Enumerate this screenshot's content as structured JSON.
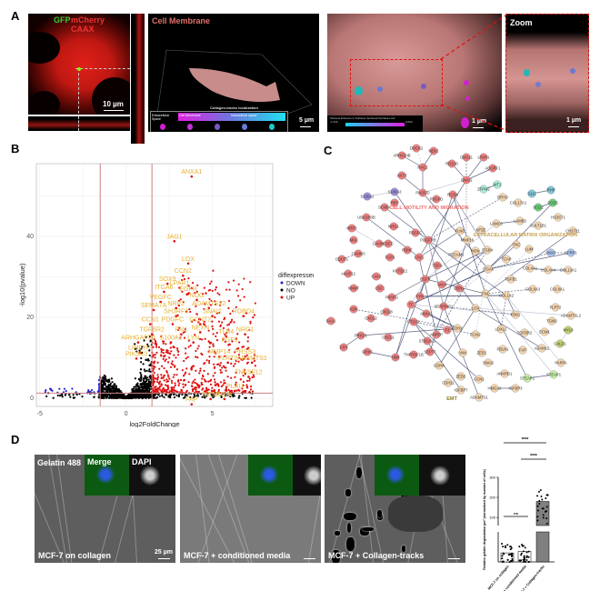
{
  "panels": {
    "a": "A",
    "b": "B",
    "c": "C",
    "d": "D"
  },
  "panel_a": {
    "img1": {
      "label_gfp": "GFP",
      "label_mcherry": "mCherry CAAX",
      "scale": "10 µm"
    },
    "img2": {
      "title": "Cell Membrane",
      "legend_title": "Collagen-tracks localization",
      "legend_extracellular": "Extracellular Space",
      "legend_membrane": "Cell Membrane",
      "legend_intracellular": "Intracellular space",
      "scale": "5 µm"
    },
    "img3": {
      "colorbar_title": "Shortest Distance to Surfaces Surfaces=Surfaces cell",
      "colorbar_min": "-1.316",
      "colorbar_max": "0.000",
      "scale": "1 µm"
    },
    "zoom": {
      "title": "Zoom",
      "scale": "1 µm"
    },
    "colors": {
      "extracellular": "#d020d0",
      "membrane": "#c030d8",
      "intra1": "#7a5ac0",
      "intra2": "#6a7ad8",
      "intra3": "#20c8c8"
    }
  },
  "chart_data": [
    {
      "type": "scatter",
      "title": "",
      "xlabel": "log2FoldChange",
      "ylabel": "-log10(pvalue)",
      "xlim": [
        -5.2,
        8.5
      ],
      "ylim": [
        -2,
        58
      ],
      "xticks": [
        "-5",
        "0",
        "5"
      ],
      "xtick_values": [
        -5,
        0,
        5
      ],
      "yticks": [
        "0",
        "20",
        "40"
      ],
      "ytick_values": [
        0,
        20,
        40
      ],
      "thresholds": {
        "log2fc": [
          -1.5,
          1.5
        ],
        "neg_log10_p": 1.3
      },
      "legend": {
        "title": "diffexpressed",
        "placement": "right",
        "entries": [
          {
            "name": "DOWN",
            "color": "#2020d0"
          },
          {
            "name": "NO",
            "color": "#000000"
          },
          {
            "name": "UP",
            "color": "#e01010"
          }
        ]
      },
      "labeled_genes": [
        {
          "gene": "ANXA1",
          "x": 3.8,
          "y": 55.5
        },
        {
          "gene": "JAG1",
          "x": 2.8,
          "y": 39.5
        },
        {
          "gene": "LOX",
          "x": 3.6,
          "y": 34
        },
        {
          "gene": "CCN2",
          "x": 3.3,
          "y": 31
        },
        {
          "gene": "SOX9",
          "x": 2.4,
          "y": 29
        },
        {
          "gene": "LPAR1",
          "x": 3.1,
          "y": 28
        },
        {
          "gene": "ITGA6",
          "x": 2.2,
          "y": 27
        },
        {
          "gene": "EGFR",
          "x": 3.6,
          "y": 26.5
        },
        {
          "gene": "NOG",
          "x": 4.1,
          "y": 25
        },
        {
          "gene": "VEGFC",
          "x": 2.0,
          "y": 24.5
        },
        {
          "gene": "NRP2",
          "x": 2.9,
          "y": 23
        },
        {
          "gene": "ADAMTS12",
          "x": 4.8,
          "y": 23
        },
        {
          "gene": "SEMA7A",
          "x": 1.6,
          "y": 22.5
        },
        {
          "gene": "SH3RF3",
          "x": 2.9,
          "y": 21
        },
        {
          "gene": "SNAI2",
          "x": 5.0,
          "y": 21
        },
        {
          "gene": "ROBO4",
          "x": 6.8,
          "y": 21
        },
        {
          "gene": "CCN1",
          "x": 1.4,
          "y": 19
        },
        {
          "gene": "PDGFC",
          "x": 2.7,
          "y": 19
        },
        {
          "gene": "GCNT2",
          "x": 4.3,
          "y": 19
        },
        {
          "gene": "NEXN",
          "x": 4.3,
          "y": 17
        },
        {
          "gene": "TGFBR2",
          "x": 1.5,
          "y": 16.5
        },
        {
          "gene": "FN1",
          "x": 3.2,
          "y": 16.5
        },
        {
          "gene": "TLR4",
          "x": 5.8,
          "y": 16
        },
        {
          "gene": "NRG1",
          "x": 6.9,
          "y": 16.5
        },
        {
          "gene": "ARHGAP29",
          "x": 0.7,
          "y": 14.5
        },
        {
          "gene": "S100A2",
          "x": 2.6,
          "y": 14.5
        },
        {
          "gene": "LYN",
          "x": 3.9,
          "y": 14.5
        },
        {
          "gene": "FGF5",
          "x": 6.0,
          "y": 14
        },
        {
          "gene": "LIMCH1",
          "x": 0.8,
          "y": 12
        },
        {
          "gene": "MMP14",
          "x": 5.4,
          "y": 11
        },
        {
          "gene": "PRSS3",
          "x": 6.9,
          "y": 11
        },
        {
          "gene": "PIK3R3",
          "x": 0.6,
          "y": 10.5
        },
        {
          "gene": "FLRT2",
          "x": 5.9,
          "y": 9.5
        },
        {
          "gene": "ADAMTS1",
          "x": 7.3,
          "y": 9.5
        },
        {
          "gene": "TNFSF12",
          "x": 7.1,
          "y": 6
        },
        {
          "gene": "PLAU",
          "x": 6.3,
          "y": 2.5
        },
        {
          "gene": "ETS1",
          "x": 4.9,
          "y": 0.5
        },
        {
          "gene": "MSN",
          "x": 5.7,
          "y": 0.5
        },
        {
          "gene": "FAP",
          "x": 3.8,
          "y": -0.8
        }
      ]
    },
    {
      "type": "bar",
      "title": "",
      "ylabel": "Relative gelatin degradation µm² (normalized by number of cells)",
      "categories": [
        "MCF-7 on collagen",
        "MCF-7 + conditioned media",
        "MCF-7 + Collagen-tracks"
      ],
      "values": [
        12,
        14,
        150
      ],
      "yticks_upper": [
        "100",
        "200",
        "300"
      ],
      "ytick_values_upper": [
        100,
        200,
        300
      ],
      "axis_break": true,
      "significance": [
        {
          "pair": [
            1,
            2
          ],
          "label": "****"
        },
        {
          "pair": [
            2,
            3
          ],
          "label": "****"
        },
        {
          "pair": [
            1,
            2
          ],
          "label": "ns",
          "level": "low"
        }
      ],
      "bar_color": "#808080"
    }
  ],
  "network": {
    "categories": {
      "motility": "CELL MOTILITY AND MIGRATION",
      "ecm": "EXTRACELLULAR MATRIX ORGANIZATION",
      "emt": "EMT"
    },
    "colors": {
      "red": "#ef7e7e",
      "tan": "#f6d5ad",
      "purple": "#9b8fe0",
      "teal": "#a8ecd8",
      "blue": "#80c8dc",
      "green": "#6ad07a",
      "lightblue": "#aac4f0",
      "olive": "#c4d070",
      "lightgreen": "#c4f2a4"
    },
    "nodes": [
      "DOCK2",
      "NEK2",
      "ARHGDIB",
      "RAC2",
      "RGS20",
      "GNG11",
      "LPAR1",
      "ADGRF1",
      "AKT3",
      "GNAI1",
      "PIK3CD",
      "PDGFD",
      "RGS4",
      "S100A2",
      "S100A3",
      "WT1",
      "ZFPM2",
      "DRYD",
      "COL17A1",
      "GLI2",
      "RHP",
      "SCG2",
      "SCG5",
      "SCN5A",
      "RBT",
      "UBASH3B",
      "LAMC2",
      "LAMB3",
      "HS3ST1",
      "SULT1B1",
      "NRP2",
      "NRG1",
      "PDGFC",
      "FLNC",
      "NT5E",
      "CHST11",
      "MAL",
      "CAVIN2",
      "EGFC",
      "PDGFRB",
      "MMP16",
      "TNC",
      "LUM",
      "DKK3",
      "SFRP1",
      "CAVIN3",
      "FGF5",
      "PDNF",
      "CAV1",
      "PECAM1",
      "MSN",
      "ITGB4",
      "ITGA6",
      "TCAP",
      "COL4A1",
      "COL4A4",
      "COL13A1",
      "CDCP1",
      "AKAP12",
      "CAV2",
      "EGFR",
      "KCTD12",
      "TGFA",
      "TGFB1",
      "NNMT",
      "CSF1",
      "VAV3",
      "DBN1",
      "FN1",
      "COL1A2",
      "COL6A3",
      "COL8A1",
      "PPARG",
      "FYN",
      "TF",
      "SERPINE1",
      "ADK",
      "CXCL8",
      "ANXA1",
      "LOX",
      "FLRT2",
      "ADAMTSL2",
      "FBN1",
      "SAA1",
      "CXCL2",
      "PTGS2",
      "TGM2",
      "CDH2",
      "F3",
      "ANPEP",
      "CCN2",
      "LOXL2",
      "TGFBR2",
      "ECM1",
      "MYL9",
      "PRKD1",
      "CXCL1",
      "CALD1",
      "ST6GAL1",
      "CFH",
      "FBLN1",
      "FAP",
      "ADAM12",
      "VIM",
      "ZEB1",
      "SEPT7",
      "GRK5",
      "TNFRSF1B",
      "HBB",
      "SNAI2",
      "PAPPA",
      "CDH4",
      "ANKRD1",
      "STEAP2",
      "STEAP1",
      "ZEB2",
      "CCN1",
      "CDH11",
      "IGFBP7",
      "HMGA2",
      "IGFBP3",
      "ADAMTS1"
    ]
  },
  "panel_d": {
    "images": [
      {
        "caption": "MCF-7 on collagen",
        "scale": "25 µm"
      },
      {
        "caption": "MCF-7 + conditioned media"
      },
      {
        "caption": "MCF-7 + Collagen-tracks"
      }
    ],
    "channel_labels": {
      "gelatin": "Gelatin 488",
      "merge": "Merge",
      "dapi": "DAPI"
    }
  }
}
